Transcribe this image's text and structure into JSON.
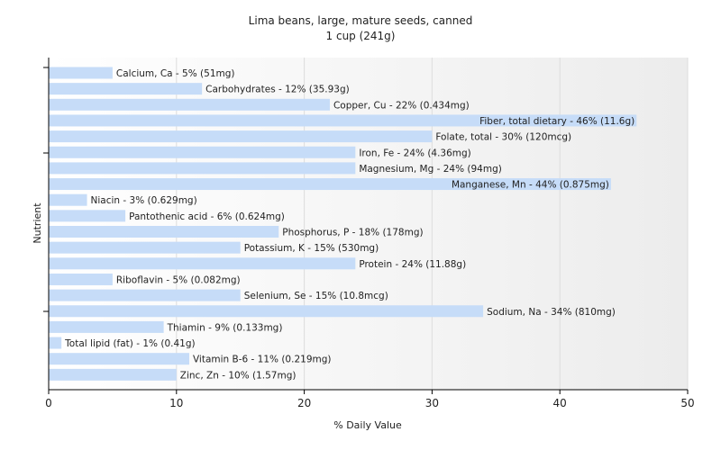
{
  "chart_data": {
    "type": "bar",
    "orientation": "horizontal",
    "title": "Lima beans, large, mature seeds, canned",
    "subtitle": "1 cup (241g)",
    "xlabel": "% Daily Value",
    "ylabel": "Nutrient",
    "xlim": [
      0,
      50
    ],
    "xticks": [
      0,
      10,
      20,
      30,
      40,
      50
    ],
    "grid": true,
    "bar_color": "#c6dcf8",
    "categories": [
      "Calcium, Ca",
      "Carbohydrates",
      "Copper, Cu",
      "Fiber, total dietary",
      "Folate, total",
      "Iron, Fe",
      "Magnesium, Mg",
      "Manganese, Mn",
      "Niacin",
      "Pantothenic acid",
      "Phosphorus, P",
      "Potassium, K",
      "Protein",
      "Riboflavin",
      "Selenium, Se",
      "Sodium, Na",
      "Thiamin",
      "Total lipid (fat)",
      "Vitamin B-6",
      "Zinc, Zn"
    ],
    "values": [
      5,
      12,
      22,
      46,
      30,
      24,
      24,
      44,
      3,
      6,
      18,
      15,
      24,
      5,
      15,
      34,
      9,
      1,
      11,
      10
    ],
    "labels": [
      "Calcium, Ca - 5% (51mg)",
      "Carbohydrates - 12% (35.93g)",
      "Copper, Cu - 22% (0.434mg)",
      "Fiber, total dietary - 46% (11.6g)",
      "Folate, total - 30% (120mcg)",
      "Iron, Fe - 24% (4.36mg)",
      "Magnesium, Mg - 24% (94mg)",
      "Manganese, Mn - 44% (0.875mg)",
      "Niacin - 3% (0.629mg)",
      "Pantothenic acid - 6% (0.624mg)",
      "Phosphorus, P - 18% (178mg)",
      "Potassium, K - 15% (530mg)",
      "Protein - 24% (11.88g)",
      "Riboflavin - 5% (0.082mg)",
      "Selenium, Se - 15% (10.8mcg)",
      "Sodium, Na - 34% (810mg)",
      "Thiamin - 9% (0.133mg)",
      "Total lipid (fat) - 1% (0.41g)",
      "Vitamin B-6 - 11% (0.219mg)",
      "Zinc, Zn - 10% (1.57mg)"
    ]
  }
}
